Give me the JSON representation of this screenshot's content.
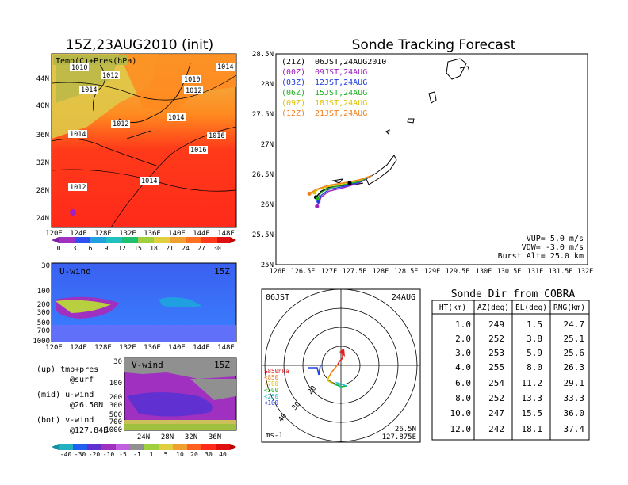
{
  "map_panel": {
    "title": "15Z,23AUG2010 (init)",
    "subtitle": "Temp(C)+Pres(hPa)",
    "lon_ticks": [
      "120E",
      "124E",
      "128E",
      "132E",
      "136E",
      "140E",
      "144E",
      "148E"
    ],
    "lat_ticks": [
      "44N",
      "40N",
      "36N",
      "32N",
      "28N",
      "24N"
    ],
    "isobar_labels": [
      "1010",
      "1012",
      "1014",
      "1010",
      "1012",
      "1014",
      "1014",
      "1012",
      "1014",
      "1016",
      "1016",
      "1014",
      "1012",
      "1014"
    ],
    "colorbar_labels": [
      "0",
      "3",
      "6",
      "9",
      "12",
      "15",
      "18",
      "21",
      "24",
      "27",
      "30"
    ],
    "colors": {
      "warm": "#ff2a1a",
      "orange": "#ff7a1a",
      "yellow": "#e8d040",
      "olive": "#b8b84a"
    }
  },
  "uwind_panel": {
    "title": "U-wind",
    "time": "15Z",
    "p_ticks": [
      "30",
      "100",
      "200",
      "300",
      "500",
      "700",
      "1000"
    ],
    "lon_ticks": [
      "120E",
      "124E",
      "128E",
      "132E",
      "136E",
      "140E",
      "144E",
      "148E"
    ]
  },
  "vwind_panel": {
    "title": "V-wind",
    "time": "15Z",
    "p_ticks": [
      "30",
      "100",
      "200",
      "300",
      "500",
      "700",
      "1000"
    ],
    "lat_ticks": [
      "24N",
      "28N",
      "32N",
      "36N"
    ],
    "colorbar_labels": [
      "-40",
      "-30",
      "-20",
      "-10",
      "-5",
      "-1",
      "1",
      "5",
      "10",
      "20",
      "30",
      "40"
    ]
  },
  "legend_notes": {
    "up": [
      "(up) tmp+pres",
      "@surf"
    ],
    "mid": [
      "(mid) u-wind",
      "@26.50N"
    ],
    "bot": [
      "(bot) v-wind",
      "@127.84E"
    ]
  },
  "track_panel": {
    "title": "Sonde Tracking Forecast",
    "entries": [
      {
        "code": "(21Z)",
        "label": "06JST,24AUG2010",
        "color": "#000000"
      },
      {
        "code": "(00Z)",
        "label": "09JST,24AUG",
        "color": "#a020c0"
      },
      {
        "code": "(03Z)",
        "label": "12JST,24AUG",
        "color": "#2040e0"
      },
      {
        "code": "(06Z)",
        "label": "15JST,24AUG",
        "color": "#20b020"
      },
      {
        "code": "(09Z)",
        "label": "18JST,24AUG",
        "color": "#e0c000"
      },
      {
        "code": "(12Z)",
        "label": "21JST,24AUG",
        "color": "#f08020"
      }
    ],
    "lat_ticks": [
      "28.5N",
      "28N",
      "27.5N",
      "27N",
      "26.5N",
      "26N",
      "25.5N",
      "25N"
    ],
    "lon_ticks": [
      "126E",
      "126.5E",
      "127E",
      "127.5E",
      "128E",
      "128.5E",
      "129E",
      "129.5E",
      "130E",
      "130.5E",
      "131E",
      "131.5E",
      "132E"
    ],
    "params": [
      "VUP=  5.0 m/s",
      "VDW= -3.0 m/s",
      "Burst Alt= 25.0 km"
    ]
  },
  "polar_panel": {
    "time": "06JST",
    "date": "24AUG",
    "levels": [
      "≥850hPa",
      "<850",
      "<700",
      "<500",
      "<250",
      "<100"
    ],
    "level_colors": [
      "#e02020",
      "#f08020",
      "#e0c000",
      "#20b020",
      "#20c0d0",
      "#2040e0"
    ],
    "ring_labels": [
      "20",
      "30",
      "40"
    ],
    "unit": "ms-1",
    "lat": "26.5N",
    "lon": "127.875E"
  },
  "table_panel": {
    "title": "Sonde Dir from COBRA",
    "headers": [
      "HT(km)",
      "AZ(deg)",
      "EL(deg)",
      "RNG(km)"
    ],
    "rows": [
      [
        "1.0",
        "249",
        "1.5",
        "24.7"
      ],
      [
        "2.0",
        "252",
        "3.8",
        "25.1"
      ],
      [
        "3.0",
        "253",
        "5.9",
        "25.6"
      ],
      [
        "4.0",
        "255",
        "8.0",
        "26.3"
      ],
      [
        "6.0",
        "254",
        "11.2",
        "29.1"
      ],
      [
        "8.0",
        "252",
        "13.3",
        "33.3"
      ],
      [
        "10.0",
        "247",
        "15.5",
        "36.0"
      ],
      [
        "12.0",
        "242",
        "18.1",
        "37.4"
      ]
    ]
  },
  "chart_data": [
    {
      "type": "line",
      "title": "Sonde Tracking Forecast",
      "xlim": [
        126,
        132
      ],
      "ylim": [
        25,
        28.5
      ],
      "series": [
        {
          "name": "(21Z) 06JST,24AUG2010",
          "x": [
            127.84,
            127.6,
            127.3,
            127.0,
            126.85,
            126.75
          ],
          "y": [
            26.48,
            26.38,
            26.32,
            26.28,
            26.22,
            26.12
          ]
        },
        {
          "name": "(00Z) 09JST,24AUG",
          "x": [
            127.84,
            127.6,
            127.3,
            127.0,
            126.85,
            126.77
          ],
          "y": [
            26.48,
            26.36,
            26.28,
            26.22,
            26.12,
            25.97
          ]
        },
        {
          "name": "(03Z) 12JST,24AUG",
          "x": [
            127.84,
            127.6,
            127.3,
            127.0,
            126.85,
            126.8
          ],
          "y": [
            26.48,
            26.37,
            26.3,
            26.25,
            26.15,
            26.05
          ]
        },
        {
          "name": "(06Z) 15JST,24AUG",
          "x": [
            127.84,
            127.6,
            127.3,
            127.0,
            126.85,
            126.78
          ],
          "y": [
            26.48,
            26.38,
            26.33,
            26.27,
            26.2,
            26.1
          ]
        },
        {
          "name": "(09Z) 18JST,24AUG",
          "x": [
            127.84,
            127.6,
            127.3,
            127.0,
            126.8,
            126.72
          ],
          "y": [
            26.48,
            26.4,
            26.35,
            26.3,
            26.25,
            26.2
          ]
        },
        {
          "name": "(12Z) 21JST,24AUG",
          "x": [
            127.84,
            127.6,
            127.3,
            127.0,
            126.75,
            126.62
          ],
          "y": [
            26.48,
            26.41,
            26.36,
            26.32,
            26.25,
            26.18
          ]
        }
      ]
    },
    {
      "type": "table",
      "title": "Sonde Dir from COBRA",
      "columns": [
        "HT(km)",
        "AZ(deg)",
        "EL(deg)",
        "RNG(km)"
      ],
      "rows": [
        [
          1.0,
          249,
          1.5,
          24.7
        ],
        [
          2.0,
          252,
          3.8,
          25.1
        ],
        [
          3.0,
          253,
          5.9,
          25.6
        ],
        [
          4.0,
          255,
          8.0,
          26.3
        ],
        [
          6.0,
          254,
          11.2,
          29.1
        ],
        [
          8.0,
          252,
          13.3,
          33.3
        ],
        [
          10.0,
          247,
          15.5,
          36.0
        ],
        [
          12.0,
          242,
          18.1,
          37.4
        ]
      ]
    }
  ]
}
